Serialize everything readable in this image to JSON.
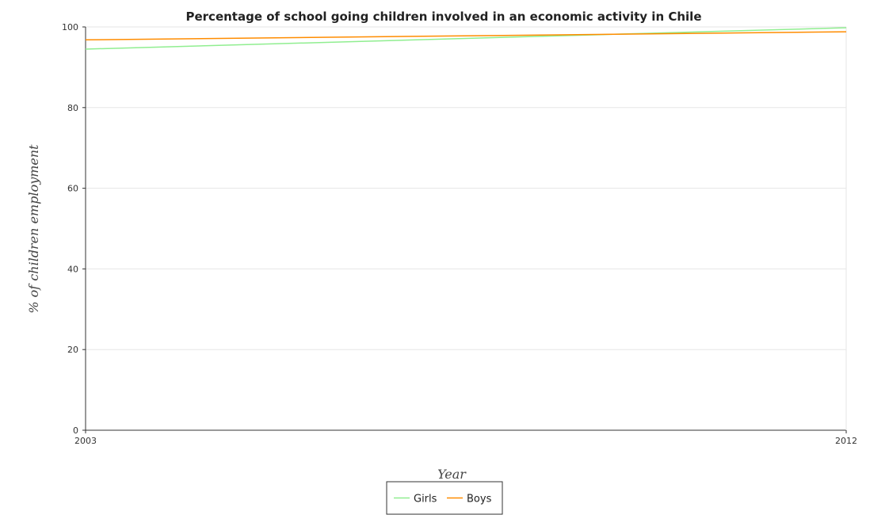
{
  "chart_data": {
    "type": "line",
    "title": "Percentage of school going children involved in an economic activity in Chile",
    "xlabel": "Year",
    "ylabel": "% of children employment",
    "categories": [
      "2003",
      "2012"
    ],
    "ylim": [
      0,
      100
    ],
    "yticks": [
      0,
      20,
      40,
      60,
      80,
      100
    ],
    "grid": true,
    "legend_position": "bottom-center",
    "series": [
      {
        "name": "Girls",
        "values": [
          94.5,
          99.8
        ],
        "color": "#90ee90"
      },
      {
        "name": "Boys",
        "values": [
          96.8,
          98.8
        ],
        "color": "#ff8c00"
      }
    ]
  }
}
